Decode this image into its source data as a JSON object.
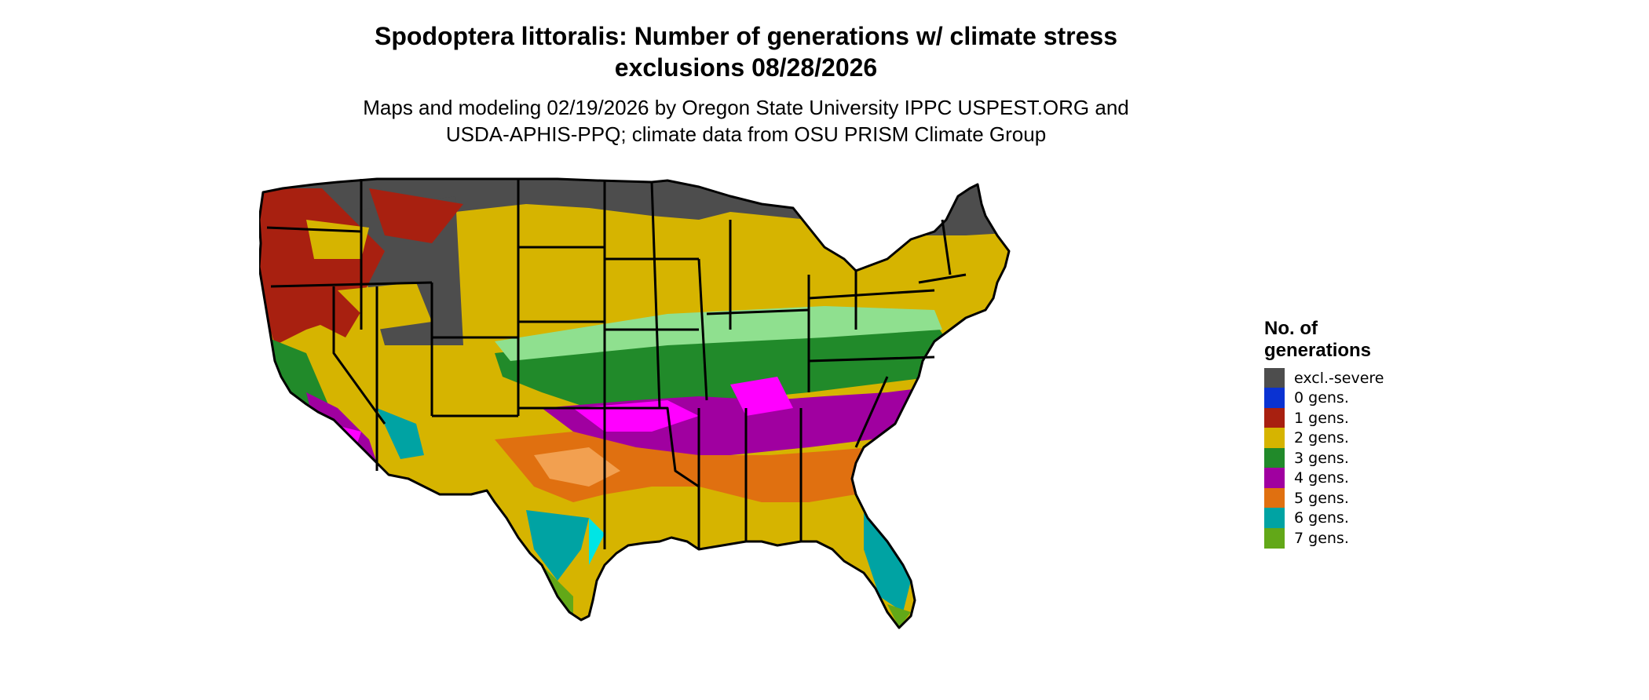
{
  "header": {
    "title_line1": "Spodoptera littoralis: Number of generations w/ climate stress",
    "title_line2": "exclusions 08/28/2026",
    "subtitle_line1": "Maps and modeling 02/19/2026 by Oregon State University IPPC USPEST.ORG and",
    "subtitle_line2": "USDA-APHIS-PPQ; climate data from OSU PRISM Climate Group"
  },
  "legend": {
    "title_line1": "No. of",
    "title_line2": "generations",
    "items": [
      {
        "label": "excl.-severe",
        "color": "#4d4d4d"
      },
      {
        "label": "0 gens.",
        "color": "#0a32d2"
      },
      {
        "label": "1 gens.",
        "color": "#a82010"
      },
      {
        "label": "2 gens.",
        "color": "#d6b400"
      },
      {
        "label": "3 gens.",
        "color": "#218a2a"
      },
      {
        "label": "4 gens.",
        "color": "#a000a0"
      },
      {
        "label": "5 gens.",
        "color": "#e07010"
      },
      {
        "label": "6 gens.",
        "color": "#00a3a3"
      },
      {
        "label": "7 gens.",
        "color": "#62a818"
      }
    ]
  },
  "map": {
    "region": "Contiguous United States",
    "boundaries": "state lines",
    "background": "#ffffff"
  }
}
